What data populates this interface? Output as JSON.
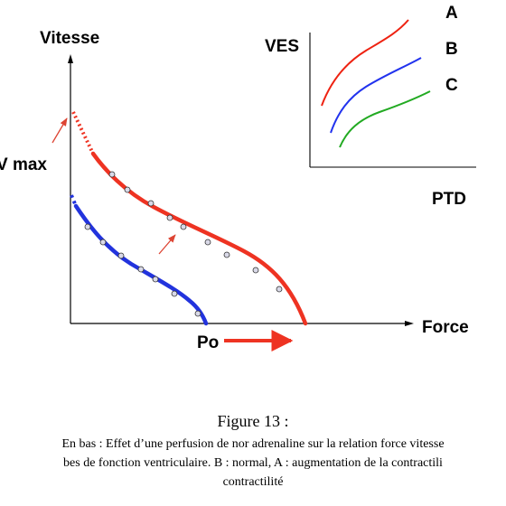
{
  "main_plot": {
    "y_axis_label": "Vitesse",
    "x_axis_label": "Force",
    "vmax_label": "V max",
    "po_label": "Po",
    "curves": [
      {
        "id": "upper",
        "color": "#ee3322"
      },
      {
        "id": "lower",
        "color": "#2233dd"
      }
    ]
  },
  "inset_plot": {
    "y_axis_label": "VES",
    "x_axis_label": "PTD",
    "series": [
      {
        "label": "A",
        "color": "#ee2211"
      },
      {
        "label": "B",
        "color": "#2233ee"
      },
      {
        "label": "C",
        "color": "#22aa22"
      }
    ]
  },
  "caption": {
    "title": "Figure 13 :",
    "line1": "En bas : Effet d’une perfusion de nor adrenaline sur la relation force vitesse",
    "line2": "bes de fonction ventriculaire. B : normal, A : augmentation de la contractili",
    "line3": "contractilité"
  }
}
